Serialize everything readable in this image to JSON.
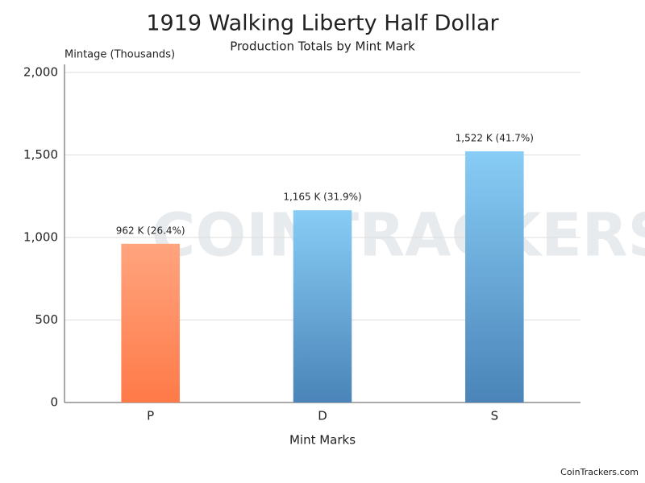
{
  "chart_data": {
    "type": "bar",
    "title": "1919 Walking Liberty Half Dollar",
    "subtitle": "Production Totals by Mint Mark",
    "y_label": "Mintage (Thousands)",
    "x_label": "Mint Marks",
    "watermark": "COINTRACKERS",
    "footer": "CoinTrackers.com",
    "categories": [
      "P",
      "D",
      "S"
    ],
    "values": [
      962,
      1165,
      1522
    ],
    "value_labels": [
      "962 K (26.4%)",
      "1,165 K (31.9%)",
      "1,522 K (41.7%)"
    ],
    "colors": [
      [
        "#ffa47e",
        "#ff7a48"
      ],
      [
        "#88cdf6",
        "#4a84b8"
      ],
      [
        "#88cdf6",
        "#4a84b8"
      ]
    ],
    "ylim": [
      0,
      2000
    ],
    "yticks": [
      0,
      500,
      {
        "value": 1000,
        "label": "1,000"
      },
      {
        "value": 1500,
        "label": "1,500"
      },
      {
        "value": 2000,
        "label": "2,000"
      }
    ],
    "grid": true
  }
}
